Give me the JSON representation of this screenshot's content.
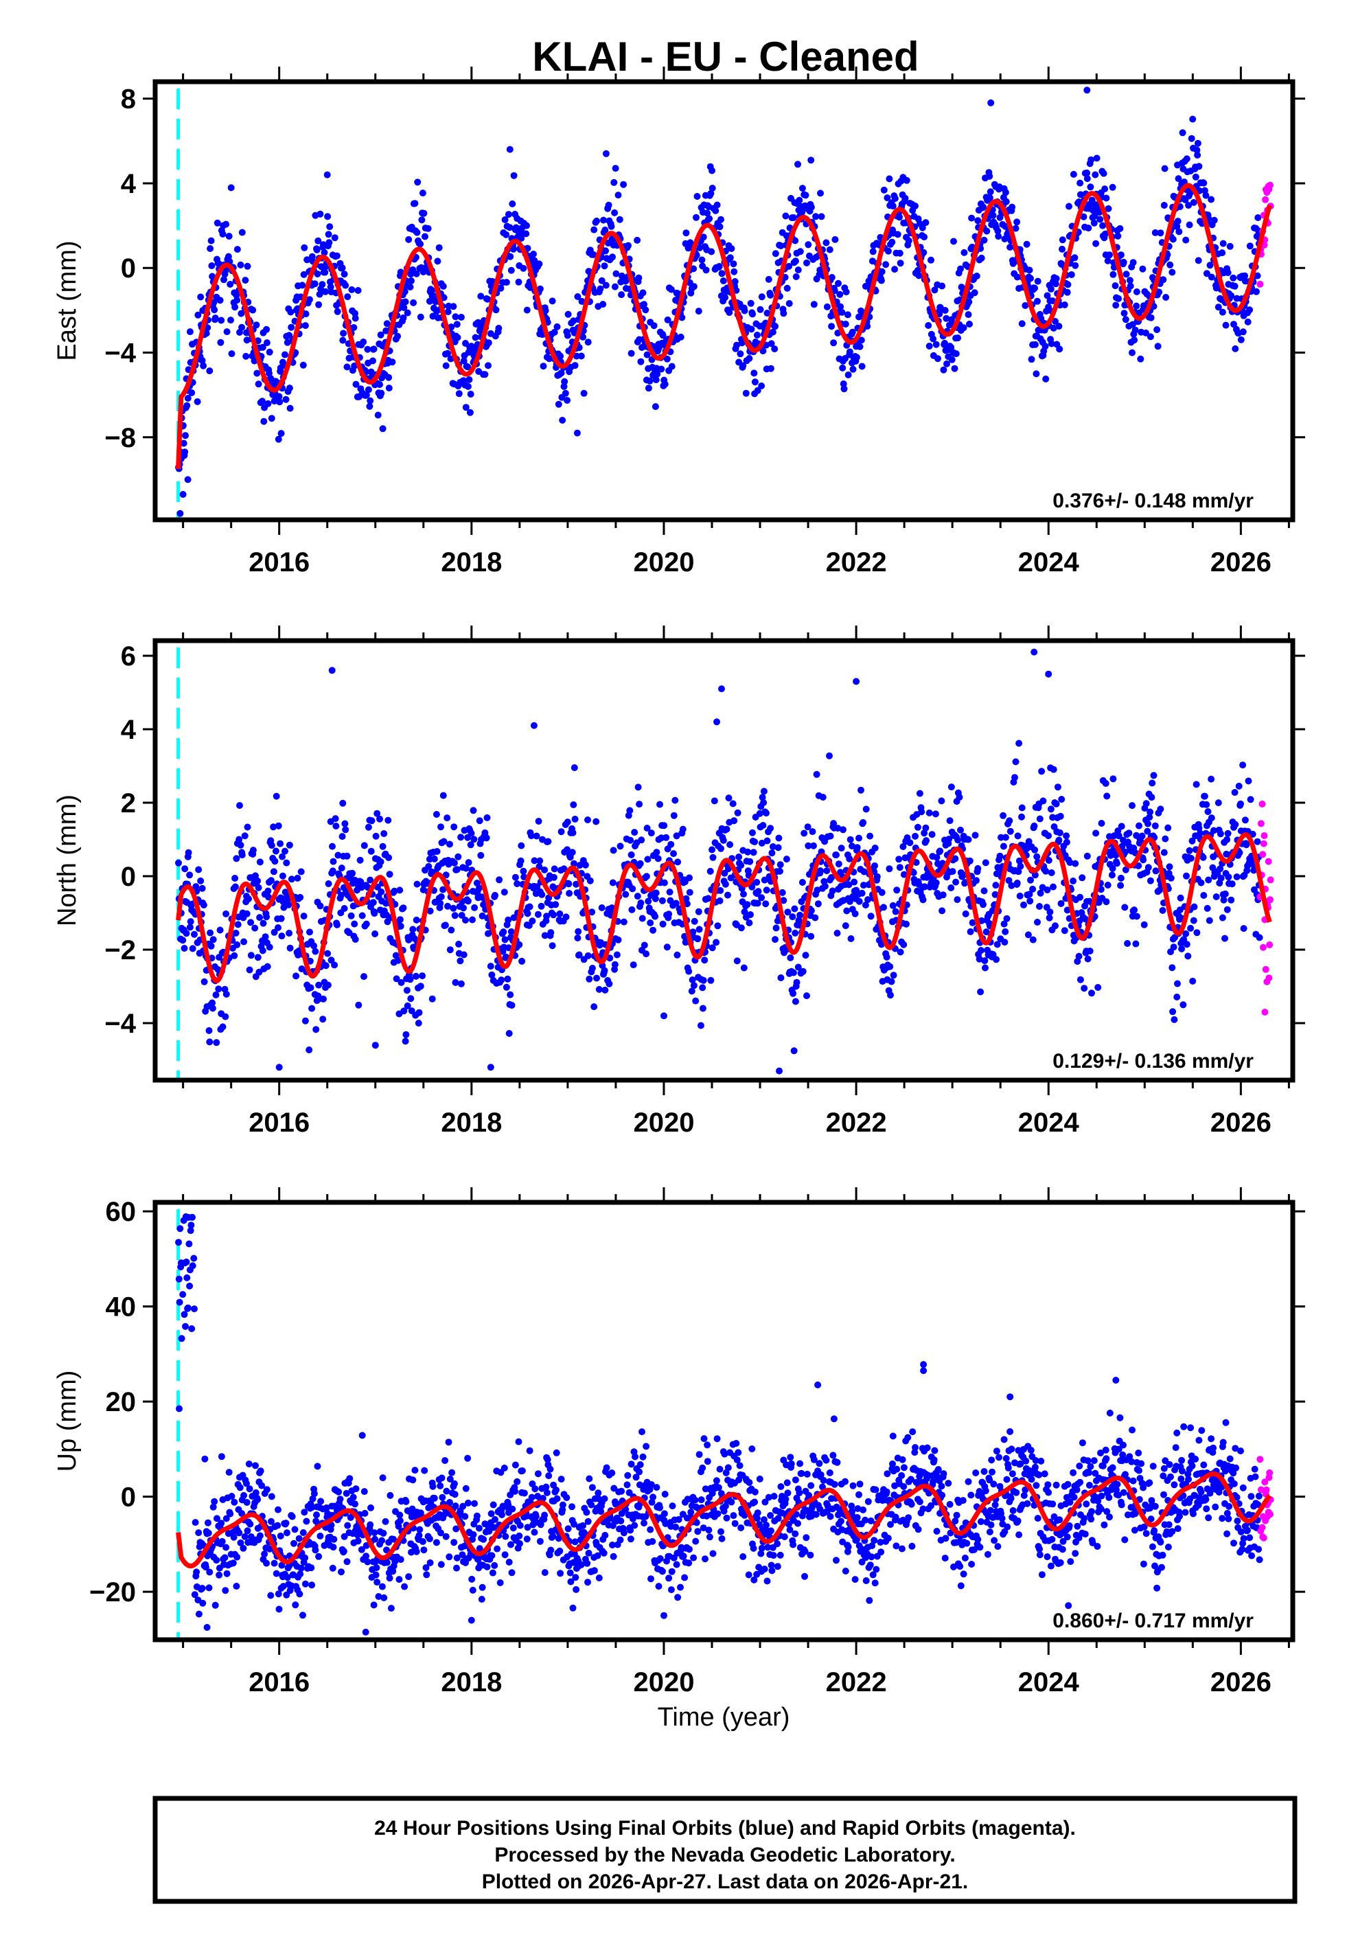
{
  "chart_data": {
    "type": "scatter",
    "title": "KLAI  - EU - Cleaned",
    "xlabel": "Time (year)",
    "xlim": [
      2014.71,
      2026.54
    ],
    "x_ticks": [
      2016,
      2018,
      2020,
      2022,
      2024,
      2026
    ],
    "x_tick_labels": [
      "2016",
      "2018",
      "2020",
      "2022",
      "2024",
      "2026"
    ],
    "x_minor_step": 0.5,
    "reference_line": {
      "year": 2014.95,
      "color": "#00ffff",
      "style": "dashed"
    },
    "colors": {
      "final": "#0000ff",
      "rapid": "#ff00ff",
      "fit": "#ff0000",
      "reference": "#00ffff"
    },
    "legend": [
      "Final Orbits (blue)",
      "Rapid Orbits (magenta)",
      "Model fit (red)"
    ],
    "panels": [
      {
        "id": "east",
        "ylabel": "East (mm)",
        "ylim": [
          -11.9,
          8.8
        ],
        "y_ticks": [
          8,
          4,
          0,
          -4,
          -8
        ],
        "y_tick_labels": [
          "8",
          "4",
          "0",
          "−4",
          "−8"
        ],
        "rate_label": "0.376+/- 0.148 mm/yr",
        "fit": {
          "start_year": 2014.95,
          "offset_start": -9.5,
          "base": -1.2,
          "trend": 0.376,
          "annual_amp": 3.05,
          "annual_phase": 0.45,
          "semiannual_amp": 0.0,
          "semiannual_phase": 0.0
        },
        "noise_sigma": 1.15,
        "rapid_range": [
          2026.2,
          2026.3
        ],
        "outliers": [
          [
            2014.97,
            -11.6
          ],
          [
            2015.0,
            -10.7
          ],
          [
            2015.05,
            -10.0
          ],
          [
            2019.1,
            -7.8
          ],
          [
            2024.4,
            8.4
          ],
          [
            2023.4,
            7.8
          ],
          [
            2016.5,
            4.4
          ],
          [
            2018.4,
            5.6
          ],
          [
            2019.4,
            5.4
          ]
        ]
      },
      {
        "id": "north",
        "ylabel": "North (mm)",
        "ylim": [
          -5.55,
          6.41
        ],
        "y_ticks": [
          6,
          4,
          2,
          0,
          -2,
          -4
        ],
        "y_tick_labels": [
          "6",
          "4",
          "2",
          "0",
          "−2",
          "−4"
        ],
        "rate_label": "0.129+/- 0.136 mm/yr",
        "fit": {
          "start_year": 2014.95,
          "offset_start": -1.2,
          "base": -0.55,
          "trend": 0.129,
          "annual_amp": 0.95,
          "annual_phase": 0.85,
          "semiannual_amp": 0.75,
          "semiannual_phase": 0.1
        },
        "noise_sigma": 0.95,
        "rapid_range": [
          2026.2,
          2026.3
        ],
        "outliers": [
          [
            2016.55,
            5.6
          ],
          [
            2023.85,
            6.1
          ],
          [
            2024.0,
            5.5
          ],
          [
            2022.0,
            5.3
          ],
          [
            2020.6,
            5.1
          ],
          [
            2018.65,
            4.1
          ],
          [
            2020.55,
            4.2
          ],
          [
            2016.0,
            -5.2
          ],
          [
            2018.2,
            -5.2
          ],
          [
            2021.2,
            -5.3
          ],
          [
            2026.25,
            -3.7
          ],
          [
            2017.0,
            -4.6
          ],
          [
            2020.0,
            -3.8
          ]
        ]
      },
      {
        "id": "up",
        "ylabel": "Up (mm)",
        "ylim": [
          -30.1,
          61.9
        ],
        "y_ticks": [
          60,
          40,
          20,
          0,
          -20
        ],
        "y_tick_labels": [
          "60",
          "40",
          "20",
          "0",
          "−20"
        ],
        "rate_label": "0.860+/- 0.717 mm/yr",
        "fit": {
          "start_year": 2014.95,
          "offset_start": -7.5,
          "base": -4.6,
          "trend": 0.86,
          "annual_amp": 4.6,
          "annual_phase": 0.62,
          "semiannual_amp": 1.4,
          "semiannual_phase": 0.3
        },
        "noise_sigma": 5.5,
        "rapid_range": [
          2026.2,
          2026.3
        ],
        "early_cluster": {
          "from": 2014.95,
          "to": 2015.12,
          "mean": 45,
          "spread": 14
        },
        "outliers": [
          [
            2014.96,
            18.5
          ],
          [
            2015.25,
            -27.5
          ],
          [
            2016.9,
            -28.5
          ],
          [
            2018.0,
            -26.0
          ],
          [
            2020.0,
            -25.0
          ],
          [
            2022.7,
            27.8
          ],
          [
            2022.7,
            26.5
          ],
          [
            2024.7,
            24.5
          ],
          [
            2021.6,
            23.5
          ],
          [
            2023.6,
            21.0
          ]
        ]
      }
    ]
  },
  "footer": {
    "lines": [
      "24 Hour Positions Using Final Orbits (blue) and Rapid Orbits (magenta).",
      "Processed by the Nevada Geodetic Laboratory.",
      "Plotted on 2026-Apr-27. Last data on 2026-Apr-21."
    ]
  }
}
